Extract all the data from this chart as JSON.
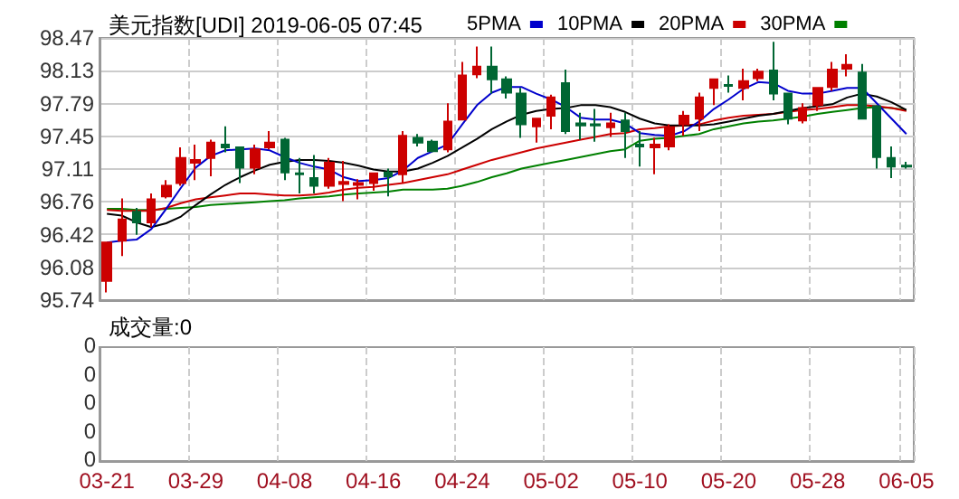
{
  "chart_data": [
    {
      "type": "candlestick",
      "title": "美元指数[UDI] 2019-06-05 07:45",
      "categories": [
        null,
        null,
        null,
        null,
        null,
        null,
        null,
        null,
        null,
        null,
        null,
        null,
        null,
        null,
        null,
        null,
        null,
        null,
        null,
        null,
        null,
        null,
        null,
        null,
        null,
        null,
        null,
        null,
        null,
        null,
        null,
        null,
        null,
        null,
        null,
        null,
        null,
        null,
        null,
        null,
        null,
        null,
        null,
        null,
        null,
        null,
        null,
        null,
        null,
        null,
        null,
        null,
        null,
        null,
        null
      ],
      "ohlc": [
        [
          95.94,
          96.34,
          95.82,
          96.34
        ],
        [
          96.36,
          96.8,
          96.2,
          96.58
        ],
        [
          96.66,
          96.7,
          96.42,
          96.55
        ],
        [
          96.55,
          96.85,
          96.5,
          96.79
        ],
        [
          96.82,
          96.99,
          96.8,
          96.93
        ],
        [
          96.96,
          97.33,
          96.93,
          97.22
        ],
        [
          97.17,
          97.36,
          96.99,
          97.2
        ],
        [
          97.22,
          97.41,
          97.03,
          97.38
        ],
        [
          97.36,
          97.55,
          97.28,
          97.33
        ],
        [
          97.33,
          97.34,
          96.96,
          97.12
        ],
        [
          97.12,
          97.36,
          97.05,
          97.31
        ],
        [
          97.33,
          97.5,
          97.31,
          97.38
        ],
        [
          97.41,
          97.43,
          96.99,
          97.07
        ],
        [
          97.06,
          97.22,
          96.85,
          97.05
        ],
        [
          97.01,
          97.25,
          96.85,
          96.93
        ],
        [
          96.93,
          97.22,
          96.9,
          97.17
        ],
        [
          96.95,
          97.19,
          96.77,
          96.97
        ],
        [
          96.94,
          97.0,
          96.79,
          96.96
        ],
        [
          96.96,
          97.07,
          96.88,
          97.06
        ],
        [
          97.07,
          97.11,
          96.82,
          97.03
        ],
        [
          97.05,
          97.5,
          96.96,
          97.45
        ],
        [
          97.43,
          97.47,
          97.34,
          97.38
        ],
        [
          97.39,
          97.41,
          97.28,
          97.29
        ],
        [
          97.31,
          97.79,
          97.28,
          97.6
        ],
        [
          97.62,
          98.22,
          97.62,
          98.08
        ],
        [
          98.09,
          98.38,
          98.05,
          98.17
        ],
        [
          98.17,
          98.38,
          97.89,
          98.04
        ],
        [
          98.04,
          98.07,
          97.84,
          97.9
        ],
        [
          97.89,
          97.95,
          97.43,
          97.57
        ],
        [
          97.55,
          97.63,
          97.38,
          97.63
        ],
        [
          97.66,
          97.88,
          97.52,
          97.85
        ],
        [
          98.0,
          98.14,
          97.47,
          97.5
        ],
        [
          97.58,
          97.69,
          97.41,
          97.56
        ],
        [
          97.57,
          97.73,
          97.39,
          97.56
        ],
        [
          97.54,
          97.69,
          97.44,
          97.58
        ],
        [
          97.61,
          97.69,
          97.22,
          97.5
        ],
        [
          97.36,
          97.5,
          97.13,
          97.34
        ],
        [
          97.33,
          97.43,
          97.05,
          97.36
        ],
        [
          97.34,
          97.57,
          97.3,
          97.54
        ],
        [
          97.57,
          97.71,
          97.45,
          97.66
        ],
        [
          97.63,
          97.9,
          97.5,
          97.85
        ],
        [
          97.95,
          98.04,
          97.77,
          98.04
        ],
        [
          97.98,
          98.08,
          97.9,
          97.97
        ],
        [
          97.95,
          98.15,
          97.82,
          98.02
        ],
        [
          98.05,
          98.15,
          98.02,
          98.12
        ],
        [
          98.13,
          98.43,
          97.82,
          97.89
        ],
        [
          97.89,
          97.9,
          97.57,
          97.63
        ],
        [
          97.61,
          97.79,
          97.58,
          97.74
        ],
        [
          97.77,
          97.96,
          97.71,
          97.95
        ],
        [
          97.96,
          98.22,
          97.92,
          98.14
        ],
        [
          98.15,
          98.3,
          98.07,
          98.19
        ],
        [
          98.11,
          98.2,
          97.62,
          97.63
        ],
        [
          97.76,
          97.77,
          97.11,
          97.23
        ],
        [
          97.22,
          97.34,
          97.01,
          97.13
        ],
        [
          97.14,
          97.18,
          97.11,
          97.13
        ]
      ],
      "colors": [
        "#cc0000",
        "#cc0000",
        "#006633",
        "#cc0000",
        "#cc0000",
        "#cc0000",
        "#cc0000",
        "#cc0000",
        "#006633",
        "#006633",
        "#cc0000",
        "#cc0000",
        "#006633",
        "#006633",
        "#006633",
        "#cc0000",
        "#cc0000",
        "#cc0000",
        "#cc0000",
        "#006633",
        "#cc0000",
        "#006633",
        "#006633",
        "#cc0000",
        "#cc0000",
        "#cc0000",
        "#006633",
        "#006633",
        "#006633",
        "#cc0000",
        "#cc0000",
        "#006633",
        "#006633",
        "#006633",
        "#cc0000",
        "#006633",
        "#006633",
        "#cc0000",
        "#cc0000",
        "#cc0000",
        "#cc0000",
        "#cc0000",
        "#006633",
        "#cc0000",
        "#cc0000",
        "#006633",
        "#006633",
        "#cc0000",
        "#cc0000",
        "#cc0000",
        "#cc0000",
        "#006633",
        "#006633",
        "#006633",
        "#006633"
      ],
      "series": [
        {
          "name": "5PMA",
          "type": "line",
          "color": "#0000cc",
          "values": [
            96.34,
            96.36,
            96.37,
            96.48,
            96.69,
            96.91,
            97.12,
            97.24,
            97.3,
            97.31,
            97.32,
            97.3,
            97.23,
            97.17,
            97.13,
            97.1,
            97.02,
            96.98,
            96.99,
            97.01,
            97.09,
            97.22,
            97.29,
            97.36,
            97.57,
            97.77,
            97.9,
            97.96,
            97.96,
            97.89,
            97.83,
            97.75,
            97.64,
            97.62,
            97.62,
            97.58,
            97.48,
            97.46,
            97.45,
            97.5,
            97.6,
            97.73,
            97.83,
            97.94,
            98.01,
            98.0,
            97.92,
            97.89,
            97.89,
            97.92,
            97.95,
            97.95,
            97.79,
            97.63,
            97.47
          ]
        },
        {
          "name": "10PMA",
          "type": "line",
          "color": "#000000",
          "values": [
            96.64,
            96.62,
            96.55,
            96.5,
            96.54,
            96.61,
            96.73,
            96.84,
            96.94,
            97.02,
            97.09,
            97.15,
            97.18,
            97.2,
            97.2,
            97.19,
            97.17,
            97.14,
            97.1,
            97.08,
            97.08,
            97.11,
            97.17,
            97.24,
            97.33,
            97.42,
            97.52,
            97.6,
            97.67,
            97.71,
            97.73,
            97.74,
            97.77,
            97.77,
            97.75,
            97.7,
            97.63,
            97.58,
            97.56,
            97.56,
            97.56,
            97.57,
            97.6,
            97.63,
            97.66,
            97.68,
            97.71,
            97.74,
            97.76,
            97.78,
            97.85,
            97.89,
            97.86,
            97.8,
            97.72
          ]
        },
        {
          "name": "20PMA",
          "type": "line",
          "color": "#cc0000",
          "values": [
            96.68,
            96.67,
            96.67,
            96.67,
            96.7,
            96.75,
            96.79,
            96.81,
            96.83,
            96.85,
            96.85,
            96.84,
            96.83,
            96.83,
            96.84,
            96.86,
            96.89,
            96.91,
            96.92,
            96.94,
            96.96,
            96.99,
            97.02,
            97.05,
            97.1,
            97.15,
            97.2,
            97.24,
            97.28,
            97.32,
            97.35,
            97.38,
            97.41,
            97.44,
            97.47,
            97.48,
            97.52,
            97.53,
            97.55,
            97.56,
            97.57,
            97.61,
            97.64,
            97.66,
            97.67,
            97.68,
            97.7,
            97.72,
            97.73,
            97.75,
            97.77,
            97.77,
            97.76,
            97.74,
            97.71
          ]
        },
        {
          "name": "30PMA",
          "type": "line",
          "color": "#008000",
          "values": [
            96.69,
            96.69,
            96.68,
            96.68,
            96.69,
            96.7,
            96.71,
            96.73,
            96.74,
            96.75,
            96.76,
            96.77,
            96.78,
            96.8,
            96.81,
            96.82,
            96.84,
            96.85,
            96.86,
            96.87,
            96.89,
            96.89,
            96.89,
            96.9,
            96.93,
            96.97,
            97.02,
            97.06,
            97.11,
            97.14,
            97.17,
            97.2,
            97.23,
            97.26,
            97.29,
            97.31,
            97.4,
            97.42,
            97.43,
            97.45,
            97.47,
            97.52,
            97.55,
            97.58,
            97.6,
            97.61,
            97.63,
            97.65,
            97.68,
            97.7,
            97.72,
            97.74,
            97.75,
            97.74,
            97.72
          ]
        }
      ],
      "ylim": [
        95.74,
        98.47
      ],
      "yticks": [
        {
          "value": 95.74,
          "label": "95.74"
        },
        {
          "value": 96.08125,
          "label": "96.08"
        },
        {
          "value": 96.4225,
          "label": "96.42"
        },
        {
          "value": 96.76375,
          "label": "96.76"
        },
        {
          "value": 97.105,
          "label": "97.11"
        },
        {
          "value": 97.44625,
          "label": "97.45"
        },
        {
          "value": 97.7875,
          "label": "97.79"
        },
        {
          "value": 98.12875,
          "label": "98.13"
        },
        {
          "value": 98.47,
          "label": "98.47"
        }
      ],
      "grid": true,
      "legend": "top right",
      "tick_labels": "y",
      "marker": "none"
    },
    {
      "type": "other",
      "title": "成交量:0",
      "categories": [
        "03-21",
        null,
        null,
        null,
        null,
        null,
        "03-29",
        null,
        null,
        null,
        null,
        null,
        "04-08",
        null,
        null,
        null,
        null,
        null,
        "04-16",
        null,
        null,
        null,
        null,
        null,
        "04-24",
        null,
        null,
        null,
        null,
        null,
        "05-02",
        null,
        null,
        null,
        null,
        null,
        "05-10",
        null,
        null,
        null,
        null,
        null,
        "05-20",
        null,
        null,
        null,
        null,
        null,
        "05-28",
        null,
        null,
        null,
        null,
        null,
        "06-05"
      ],
      "annotations": [
        "0",
        "0",
        "0",
        "0",
        "0"
      ]
    }
  ]
}
